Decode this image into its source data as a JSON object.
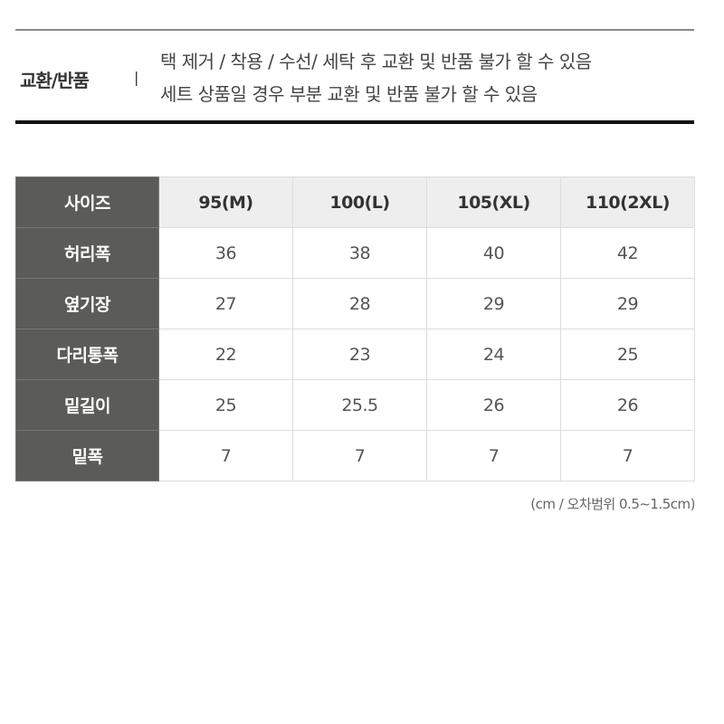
{
  "exchange": {
    "label": "교환/반품",
    "separator": "|",
    "lines": [
      "택 제거 / 착용 / 수선/ 세탁 후 교환 및 반품 불가 할 수 있음",
      "세트 상품일 경우 부분 교환 및 반품 불가 할 수 있음"
    ]
  },
  "size_table": {
    "header": [
      "사이즈",
      "95(M)",
      "100(L)",
      "105(XL)",
      "110(2XL)"
    ],
    "rows": [
      [
        "허리폭",
        "36",
        "38",
        "40",
        "42"
      ],
      [
        "옆기장",
        "27",
        "28",
        "29",
        "29"
      ],
      [
        "다리통폭",
        "22",
        "23",
        "24",
        "25"
      ],
      [
        "밑길이",
        "25",
        "25.5",
        "26",
        "26"
      ],
      [
        "밑폭",
        "7",
        "7",
        "7",
        "7"
      ]
    ]
  },
  "note": "(cm / 오차범위 0.5~1.5cm)"
}
